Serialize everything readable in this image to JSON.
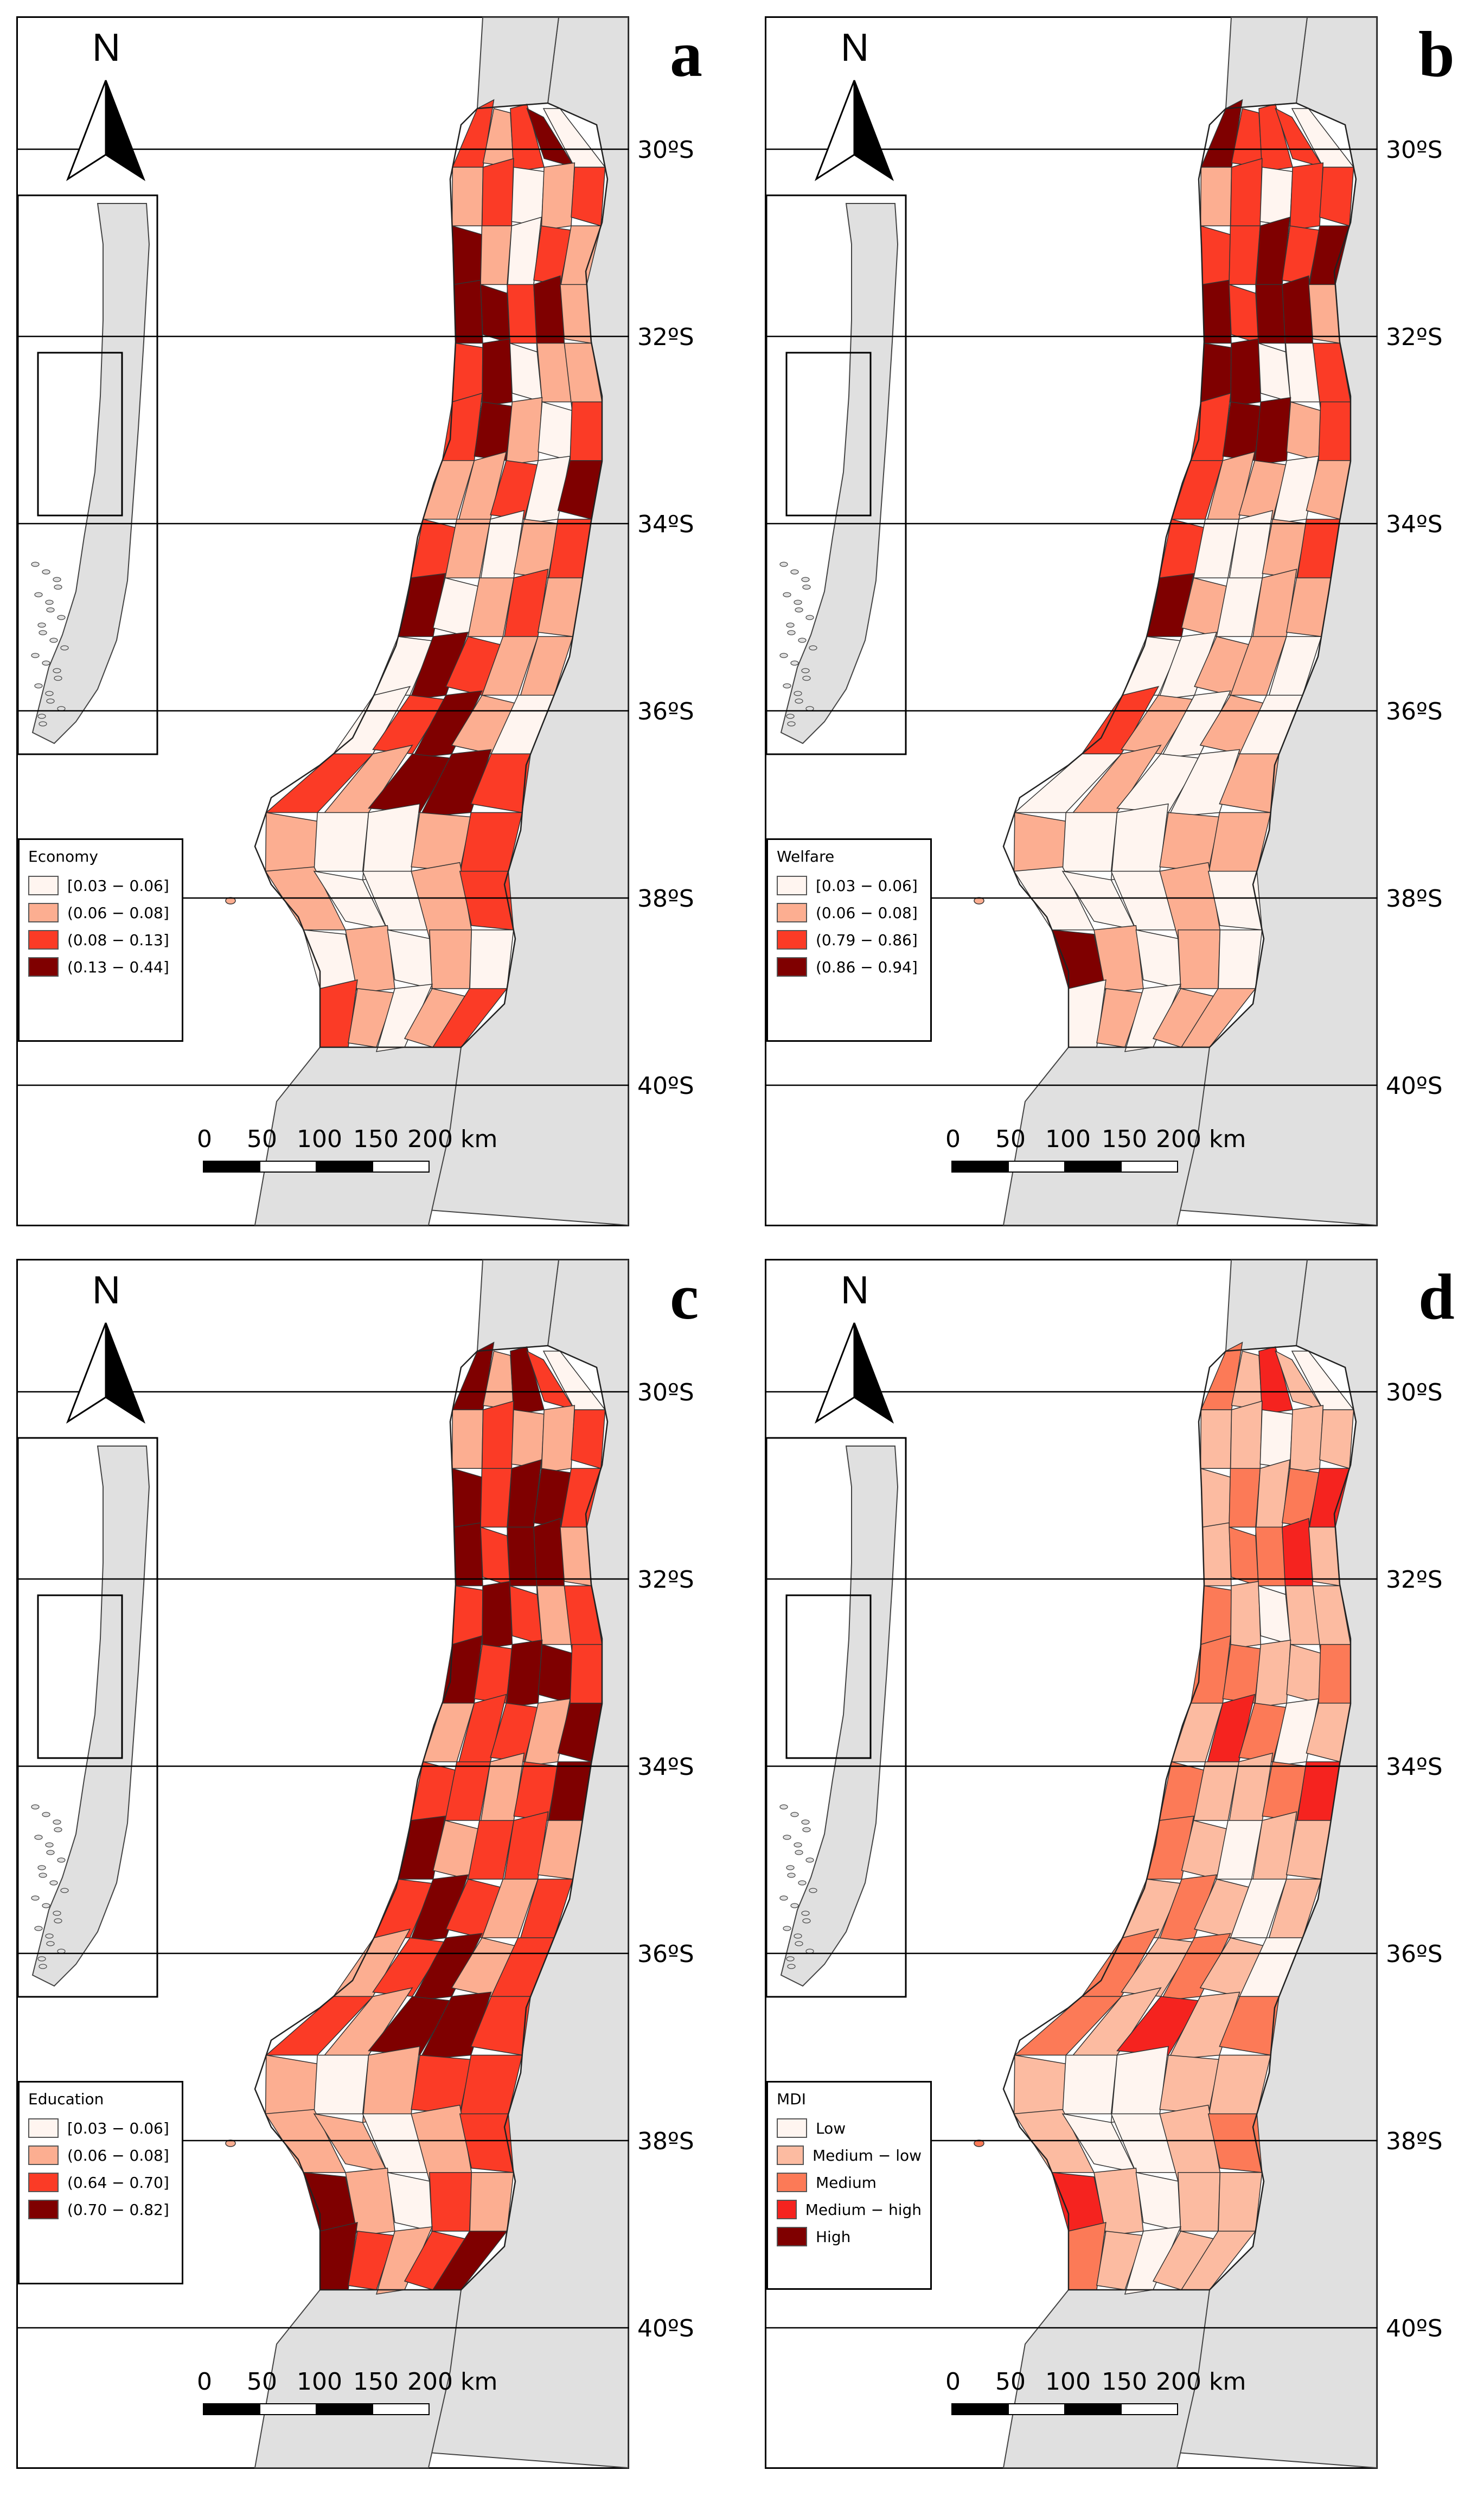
{
  "colors": {
    "ocean": "#ffffff",
    "land": "#e0e0e0",
    "border": "#000000",
    "class1": "#fff5f0",
    "class2": "#fcae91",
    "class3": "#fb3b26",
    "class4": "#7f0000",
    "mdi1": "#fff5f0",
    "mdi2": "#fcbba1",
    "mdi3": "#fc7a57",
    "mdi4": "#f5231f",
    "mdi5": "#7f0000"
  },
  "north_label": "N",
  "latitudes": [
    "30ºS",
    "32ºS",
    "34ºS",
    "36ºS",
    "38ºS",
    "40ºS"
  ],
  "scale_labels": [
    "0",
    "50",
    "100",
    "150",
    "200 km"
  ],
  "panels": [
    {
      "label": "a",
      "legend_title": "Economy",
      "legend_items": [
        "[0.03 − 0.06]",
        "(0.06 − 0.08]",
        "(0.08 − 0.13]",
        "(0.13 − 0.44]"
      ],
      "values": [
        3,
        2,
        3,
        4,
        1,
        2,
        3,
        1,
        2,
        3,
        4,
        2,
        1,
        3,
        2,
        4,
        4,
        3,
        4,
        2,
        3,
        4,
        1,
        2,
        2,
        3,
        4,
        2,
        1,
        3,
        2,
        2,
        3,
        1,
        4,
        3,
        2,
        1,
        2,
        3,
        4,
        1,
        2,
        3,
        2,
        1,
        4,
        3,
        2,
        2,
        1,
        3,
        4,
        2,
        1,
        3,
        2,
        4,
        4,
        3,
        2,
        1,
        1,
        2,
        3,
        2,
        1,
        1,
        2,
        3,
        1,
        2,
        1,
        2,
        1,
        3,
        2,
        1,
        2,
        3
      ]
    },
    {
      "label": "b",
      "legend_title": "Welfare",
      "legend_items": [
        "[0.03 − 0.06]",
        "(0.06 − 0.08]",
        "(0.79 − 0.86]",
        "(0.86 − 0.94]"
      ],
      "values": [
        4,
        3,
        3,
        3,
        1,
        2,
        3,
        1,
        3,
        3,
        3,
        3,
        4,
        3,
        4,
        4,
        3,
        4,
        4,
        2,
        4,
        4,
        1,
        1,
        3,
        3,
        4,
        4,
        2,
        3,
        3,
        2,
        2,
        1,
        2,
        3,
        1,
        1,
        2,
        3,
        4,
        2,
        1,
        2,
        2,
        1,
        1,
        2,
        2,
        1,
        3,
        2,
        1,
        2,
        1,
        1,
        2,
        1,
        1,
        2,
        2,
        1,
        1,
        2,
        2,
        1,
        1,
        1,
        2,
        1,
        4,
        2,
        1,
        2,
        1,
        1,
        2,
        1,
        2,
        2
      ]
    },
    {
      "label": "c",
      "legend_title": "Education",
      "legend_items": [
        "[0.03 − 0.06]",
        "(0.06 − 0.08]",
        "(0.64 − 0.70]",
        "(0.70 − 0.82]"
      ],
      "values": [
        4,
        2,
        4,
        3,
        1,
        2,
        3,
        2,
        2,
        3,
        4,
        3,
        4,
        4,
        3,
        4,
        3,
        4,
        4,
        2,
        3,
        4,
        3,
        2,
        3,
        4,
        3,
        4,
        4,
        3,
        2,
        3,
        3,
        2,
        4,
        3,
        3,
        2,
        3,
        4,
        4,
        2,
        3,
        3,
        2,
        3,
        4,
        3,
        2,
        3,
        2,
        3,
        4,
        2,
        3,
        3,
        2,
        4,
        4,
        3,
        2,
        1,
        2,
        3,
        3,
        2,
        2,
        1,
        2,
        3,
        4,
        2,
        1,
        3,
        2,
        4,
        3,
        2,
        3,
        4
      ]
    },
    {
      "label": "d",
      "legend_title": "MDI",
      "legend_items": [
        "Low",
        "Medium − low",
        "Medium",
        "Medium − high",
        "High"
      ],
      "values": [
        3,
        2,
        4,
        2,
        1,
        2,
        2,
        1,
        2,
        2,
        2,
        3,
        2,
        3,
        4,
        2,
        3,
        3,
        4,
        2,
        3,
        2,
        1,
        2,
        2,
        3,
        3,
        2,
        2,
        3,
        2,
        4,
        3,
        1,
        2,
        3,
        2,
        2,
        3,
        4,
        3,
        2,
        1,
        2,
        2,
        2,
        3,
        2,
        1,
        2,
        3,
        2,
        3,
        2,
        1,
        3,
        2,
        4,
        2,
        3,
        2,
        1,
        1,
        2,
        2,
        2,
        1,
        1,
        2,
        3,
        4,
        2,
        1,
        2,
        2,
        3,
        2,
        1,
        2,
        2
      ]
    }
  ]
}
